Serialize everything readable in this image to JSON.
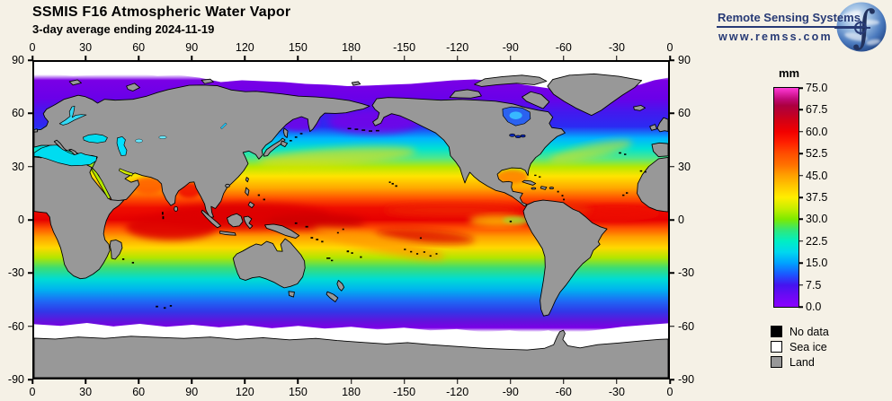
{
  "header": {
    "title": "SSMIS F16 Atmospheric Water Vapor",
    "subtitle": "3-day average ending 2024-11-19"
  },
  "logo": {
    "name": "Remote Sensing Systems",
    "url": "www.remss.com",
    "integral_glyph": "∫"
  },
  "map": {
    "lon_ticks": [
      "0",
      "30",
      "60",
      "90",
      "120",
      "150",
      "180",
      "-150",
      "-120",
      "-90",
      "-60",
      "-30",
      "0"
    ],
    "lat_ticks": [
      "90",
      "60",
      "30",
      "0",
      "-30",
      "-60",
      "-90"
    ],
    "ocean_gradient_top_to_bottom": [
      [
        0.0,
        "#ffffff"
      ],
      [
        0.04,
        "#ffffff"
      ],
      [
        0.058,
        "#7a00e6"
      ],
      [
        0.115,
        "#6a00e8"
      ],
      [
        0.158,
        "#4418ee"
      ],
      [
        0.205,
        "#2b2bf2"
      ],
      [
        0.242,
        "#00b4ff"
      ],
      [
        0.275,
        "#00e2d2"
      ],
      [
        0.305,
        "#4fe88a"
      ],
      [
        0.333,
        "#b8e800"
      ],
      [
        0.362,
        "#ffe400"
      ],
      [
        0.4,
        "#ffa600"
      ],
      [
        0.432,
        "#ff5200"
      ],
      [
        0.462,
        "#ef0e00"
      ],
      [
        0.5,
        "#e60000"
      ],
      [
        0.527,
        "#ff5200"
      ],
      [
        0.554,
        "#ff9e00"
      ],
      [
        0.588,
        "#ffd800"
      ],
      [
        0.62,
        "#b2e600"
      ],
      [
        0.652,
        "#3ddd72"
      ],
      [
        0.688,
        "#00dcd4"
      ],
      [
        0.722,
        "#00b2f0"
      ],
      [
        0.757,
        "#1e6af5"
      ],
      [
        0.79,
        "#3038e8"
      ],
      [
        0.822,
        "#6212dc"
      ],
      [
        0.842,
        "#7a00e6"
      ],
      [
        0.855,
        "#ffffff"
      ],
      [
        1.0,
        "#ffffff"
      ]
    ]
  },
  "colorbar": {
    "units_label": "mm",
    "min": 0,
    "max": 75,
    "tick_labels": [
      "75.0",
      "67.5",
      "60.0",
      "52.5",
      "45.0",
      "37.5",
      "30.0",
      "22.5",
      "15.0",
      "7.5",
      "0.0"
    ],
    "stops_bottom_to_top": [
      [
        0.0,
        "#8a00ff"
      ],
      [
        0.05,
        "#6c0af4"
      ],
      [
        0.1,
        "#4414f0"
      ],
      [
        0.15,
        "#1a5aff"
      ],
      [
        0.2,
        "#00a2ff"
      ],
      [
        0.25,
        "#00d8ee"
      ],
      [
        0.3,
        "#00eec4"
      ],
      [
        0.35,
        "#30e87a"
      ],
      [
        0.4,
        "#7dea00"
      ],
      [
        0.45,
        "#c8ee00"
      ],
      [
        0.5,
        "#ffee00"
      ],
      [
        0.55,
        "#ffc800"
      ],
      [
        0.6,
        "#ffa000"
      ],
      [
        0.65,
        "#ff7000"
      ],
      [
        0.7,
        "#ff4e00"
      ],
      [
        0.75,
        "#ff2000"
      ],
      [
        0.8,
        "#f20000"
      ],
      [
        0.85,
        "#d40014"
      ],
      [
        0.88,
        "#c00028"
      ],
      [
        0.92,
        "#ac0040"
      ],
      [
        0.95,
        "#c00a78"
      ],
      [
        1.0,
        "#ff3ad8"
      ]
    ]
  },
  "legend": {
    "items": [
      {
        "label": "No data",
        "color": "#000000"
      },
      {
        "label": "Sea ice",
        "color": "#ffffff"
      },
      {
        "label": "Land",
        "color": "#989898"
      }
    ]
  },
  "colors": {
    "bg": "#f5f1e6",
    "text": "#000000",
    "logo_navy": "#273a75",
    "land": "#989898",
    "sea_ice": "#ffffff",
    "no_data": "#000000"
  }
}
